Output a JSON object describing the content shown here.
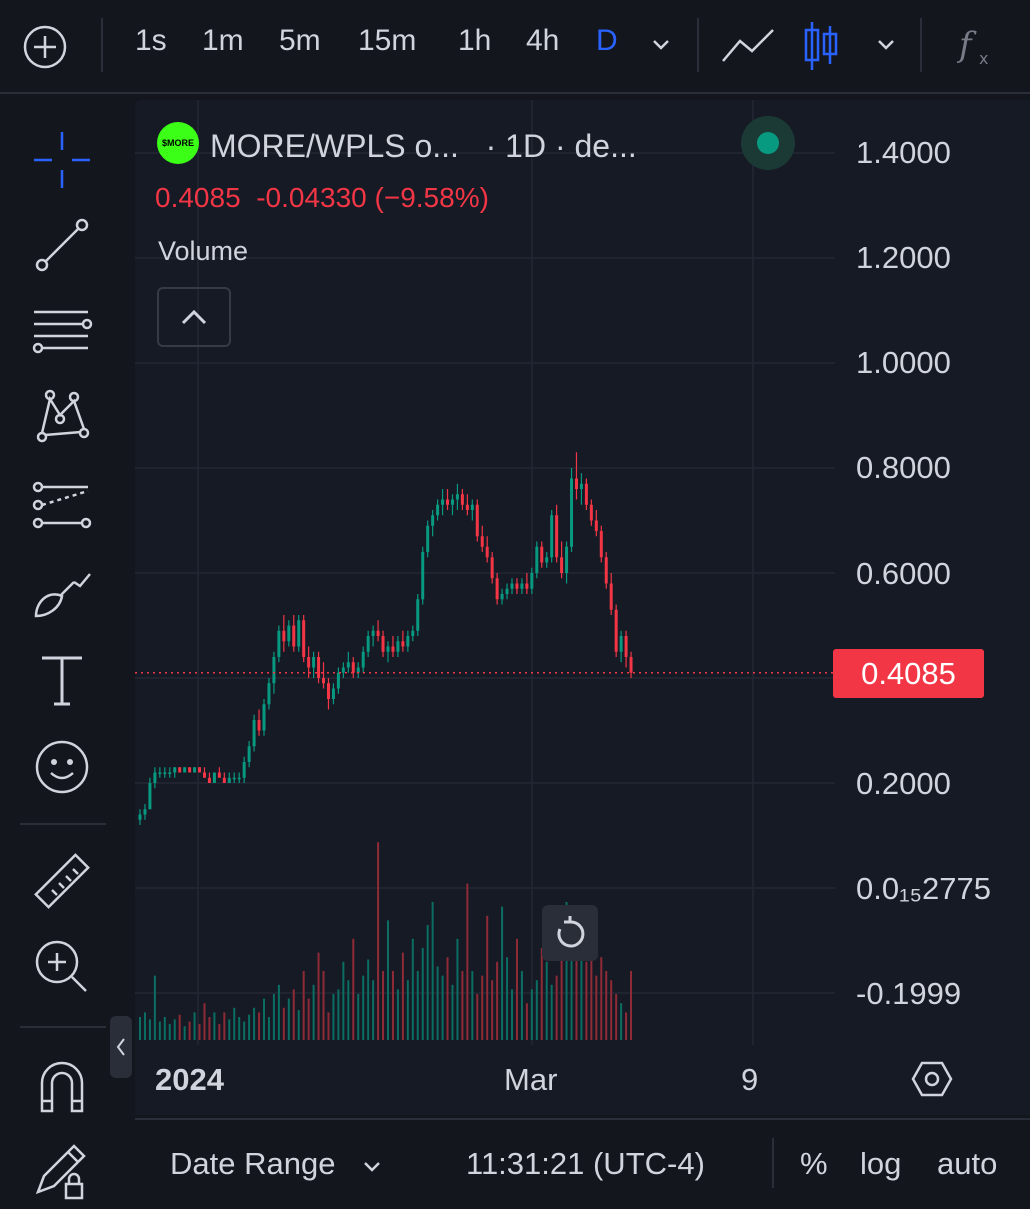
{
  "toolbar": {
    "intervals": [
      "1s",
      "1m",
      "5m",
      "15m",
      "1h",
      "4h",
      "D"
    ],
    "active_interval": "D",
    "accent": "#2962ff"
  },
  "legend": {
    "title": "MORE/WPLS o...   · 1D · de...",
    "logo_text": "$MORE",
    "last": "0.4085",
    "change": "-0.04330",
    "change_pct": "(−9.58%)",
    "volume_label": "Volume",
    "status_color": "#089981"
  },
  "price_axis": {
    "labels": [
      "1.4000",
      "1.2000",
      "1.0000",
      "0.8000",
      "0.6000",
      "0.2000",
      "0.0₁₅2775",
      "-0.1999"
    ],
    "last_price_tag": "0.4085"
  },
  "time_axis": {
    "labels": [
      "2024",
      "Mar",
      "9"
    ]
  },
  "bottom": {
    "date_range": "Date Range",
    "clock": "11:31:21 (UTC-4)",
    "percent": "%",
    "log": "log",
    "auto": "auto"
  },
  "chart_data": {
    "type": "candlestick",
    "timeframe": "1D",
    "symbol": "MORE/WPLS",
    "up_color": "#089981",
    "down_color": "#f23645",
    "candles": [
      [
        0.13,
        0.15,
        0.12,
        0.14
      ],
      [
        0.14,
        0.16,
        0.13,
        0.15
      ],
      [
        0.15,
        0.21,
        0.15,
        0.2
      ],
      [
        0.2,
        0.23,
        0.19,
        0.22
      ],
      [
        0.22,
        0.23,
        0.21,
        0.22
      ],
      [
        0.22,
        0.23,
        0.21,
        0.22
      ],
      [
        0.22,
        0.23,
        0.21,
        0.22
      ],
      [
        0.22,
        0.23,
        0.21,
        0.23
      ],
      [
        0.23,
        0.23,
        0.22,
        0.22
      ],
      [
        0.22,
        0.23,
        0.22,
        0.23
      ],
      [
        0.23,
        0.23,
        0.22,
        0.22
      ],
      [
        0.22,
        0.23,
        0.22,
        0.23
      ],
      [
        0.23,
        0.23,
        0.22,
        0.22
      ],
      [
        0.22,
        0.23,
        0.21,
        0.21
      ],
      [
        0.21,
        0.22,
        0.2,
        0.2
      ],
      [
        0.2,
        0.22,
        0.2,
        0.22
      ],
      [
        0.22,
        0.23,
        0.21,
        0.21
      ],
      [
        0.21,
        0.22,
        0.2,
        0.2
      ],
      [
        0.2,
        0.22,
        0.2,
        0.21
      ],
      [
        0.21,
        0.22,
        0.2,
        0.21
      ],
      [
        0.21,
        0.22,
        0.2,
        0.21
      ],
      [
        0.21,
        0.25,
        0.2,
        0.24
      ],
      [
        0.24,
        0.28,
        0.23,
        0.27
      ],
      [
        0.27,
        0.33,
        0.26,
        0.32
      ],
      [
        0.32,
        0.34,
        0.29,
        0.3
      ],
      [
        0.3,
        0.36,
        0.29,
        0.35
      ],
      [
        0.35,
        0.4,
        0.34,
        0.39
      ],
      [
        0.39,
        0.45,
        0.37,
        0.44
      ],
      [
        0.44,
        0.5,
        0.43,
        0.49
      ],
      [
        0.49,
        0.52,
        0.45,
        0.47
      ],
      [
        0.47,
        0.51,
        0.46,
        0.5
      ],
      [
        0.5,
        0.52,
        0.45,
        0.46
      ],
      [
        0.46,
        0.52,
        0.45,
        0.51
      ],
      [
        0.51,
        0.52,
        0.43,
        0.44
      ],
      [
        0.44,
        0.46,
        0.4,
        0.42
      ],
      [
        0.42,
        0.45,
        0.4,
        0.44
      ],
      [
        0.44,
        0.45,
        0.39,
        0.4
      ],
      [
        0.4,
        0.43,
        0.38,
        0.39
      ],
      [
        0.39,
        0.4,
        0.34,
        0.36
      ],
      [
        0.36,
        0.39,
        0.35,
        0.38
      ],
      [
        0.38,
        0.42,
        0.37,
        0.41
      ],
      [
        0.41,
        0.43,
        0.4,
        0.42
      ],
      [
        0.42,
        0.45,
        0.41,
        0.43
      ],
      [
        0.43,
        0.44,
        0.4,
        0.41
      ],
      [
        0.41,
        0.43,
        0.4,
        0.42
      ],
      [
        0.42,
        0.46,
        0.41,
        0.45
      ],
      [
        0.45,
        0.49,
        0.44,
        0.48
      ],
      [
        0.48,
        0.5,
        0.46,
        0.49
      ],
      [
        0.49,
        0.51,
        0.47,
        0.48
      ],
      [
        0.48,
        0.49,
        0.44,
        0.45
      ],
      [
        0.45,
        0.47,
        0.43,
        0.46
      ],
      [
        0.46,
        0.48,
        0.44,
        0.45
      ],
      [
        0.45,
        0.48,
        0.44,
        0.47
      ],
      [
        0.47,
        0.49,
        0.45,
        0.46
      ],
      [
        0.46,
        0.49,
        0.45,
        0.48
      ],
      [
        0.48,
        0.5,
        0.47,
        0.49
      ],
      [
        0.49,
        0.56,
        0.48,
        0.55
      ],
      [
        0.55,
        0.65,
        0.54,
        0.64
      ],
      [
        0.64,
        0.7,
        0.63,
        0.69
      ],
      [
        0.69,
        0.72,
        0.67,
        0.71
      ],
      [
        0.71,
        0.74,
        0.7,
        0.73
      ],
      [
        0.73,
        0.76,
        0.71,
        0.74
      ],
      [
        0.74,
        0.76,
        0.72,
        0.73
      ],
      [
        0.73,
        0.75,
        0.71,
        0.74
      ],
      [
        0.74,
        0.77,
        0.72,
        0.75
      ],
      [
        0.75,
        0.76,
        0.72,
        0.73
      ],
      [
        0.73,
        0.75,
        0.71,
        0.72
      ],
      [
        0.72,
        0.74,
        0.7,
        0.73
      ],
      [
        0.73,
        0.74,
        0.66,
        0.67
      ],
      [
        0.67,
        0.69,
        0.64,
        0.65
      ],
      [
        0.65,
        0.67,
        0.62,
        0.63
      ],
      [
        0.63,
        0.64,
        0.58,
        0.59
      ],
      [
        0.59,
        0.6,
        0.54,
        0.55
      ],
      [
        0.55,
        0.57,
        0.54,
        0.56
      ],
      [
        0.56,
        0.58,
        0.55,
        0.57
      ],
      [
        0.57,
        0.59,
        0.56,
        0.58
      ],
      [
        0.58,
        0.59,
        0.56,
        0.57
      ],
      [
        0.57,
        0.59,
        0.56,
        0.58
      ],
      [
        0.58,
        0.6,
        0.56,
        0.57
      ],
      [
        0.57,
        0.61,
        0.56,
        0.6
      ],
      [
        0.6,
        0.66,
        0.59,
        0.65
      ],
      [
        0.65,
        0.66,
        0.61,
        0.62
      ],
      [
        0.62,
        0.64,
        0.61,
        0.63
      ],
      [
        0.63,
        0.72,
        0.62,
        0.71
      ],
      [
        0.71,
        0.73,
        0.62,
        0.63
      ],
      [
        0.63,
        0.66,
        0.59,
        0.6
      ],
      [
        0.6,
        0.66,
        0.58,
        0.65
      ],
      [
        0.65,
        0.8,
        0.64,
        0.78
      ],
      [
        0.78,
        0.83,
        0.74,
        0.76
      ],
      [
        0.76,
        0.79,
        0.73,
        0.77
      ],
      [
        0.77,
        0.78,
        0.72,
        0.73
      ],
      [
        0.73,
        0.74,
        0.69,
        0.7
      ],
      [
        0.7,
        0.72,
        0.67,
        0.68
      ],
      [
        0.68,
        0.69,
        0.62,
        0.63
      ],
      [
        0.63,
        0.64,
        0.57,
        0.58
      ],
      [
        0.58,
        0.6,
        0.52,
        0.53
      ],
      [
        0.53,
        0.54,
        0.44,
        0.45
      ],
      [
        0.45,
        0.49,
        0.43,
        0.48
      ],
      [
        0.48,
        0.49,
        0.42,
        0.44
      ],
      [
        0.44,
        0.45,
        0.4,
        0.41
      ]
    ],
    "volume": [
      0.1,
      0.12,
      0.09,
      0.28,
      0.08,
      0.1,
      0.07,
      0.09,
      0.11,
      0.06,
      0.08,
      0.12,
      0.07,
      0.16,
      0.1,
      0.12,
      0.07,
      0.12,
      0.09,
      0.14,
      0.1,
      0.08,
      0.11,
      0.14,
      0.12,
      0.18,
      0.1,
      0.2,
      0.24,
      0.14,
      0.18,
      0.22,
      0.13,
      0.3,
      0.18,
      0.24,
      0.38,
      0.3,
      0.12,
      0.2,
      0.22,
      0.34,
      0.26,
      0.44,
      0.2,
      0.28,
      0.35,
      0.26,
      0.86,
      0.3,
      0.52,
      0.3,
      0.22,
      0.38,
      0.26,
      0.44,
      0.3,
      0.4,
      0.5,
      0.6,
      0.32,
      0.28,
      0.36,
      0.24,
      0.44,
      0.3,
      0.68,
      0.3,
      0.2,
      0.28,
      0.54,
      0.26,
      0.34,
      0.58,
      0.36,
      0.22,
      0.44,
      0.3,
      0.16,
      0.22,
      0.26,
      0.4,
      0.34,
      0.24,
      0.28,
      0.48,
      0.6,
      0.38,
      0.4,
      0.46,
      0.34,
      0.38,
      0.28,
      0.36,
      0.3,
      0.26,
      0.2,
      0.16,
      0.12,
      0.3
    ],
    "y_axis": [
      -0.1999,
      1.4
    ]
  }
}
